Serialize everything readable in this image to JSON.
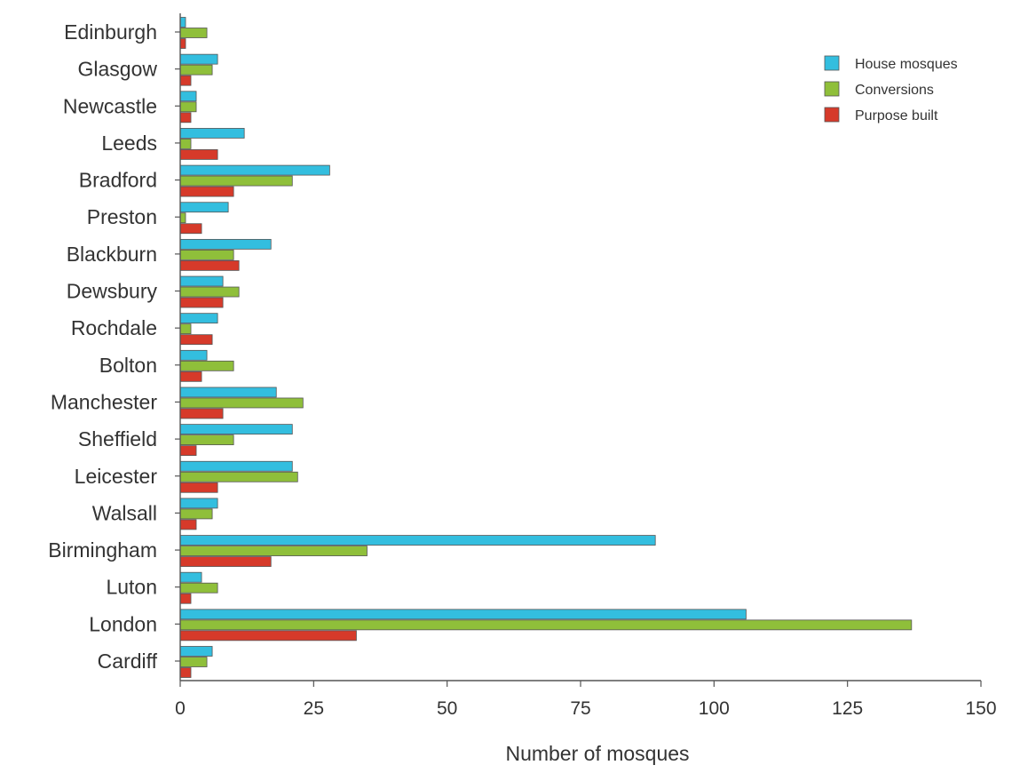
{
  "chart_data": {
    "type": "bar",
    "orientation": "horizontal",
    "title": "",
    "xlabel": "Number of mosques",
    "ylabel": "",
    "xlim": [
      0,
      150
    ],
    "x_ticks": [
      0,
      25,
      50,
      75,
      100,
      125,
      150
    ],
    "grid": false,
    "legend_position": "top-right",
    "categories": [
      "Edinburgh",
      "Glasgow",
      "Newcastle",
      "Leeds",
      "Bradford",
      "Preston",
      "Blackburn",
      "Dewsbury",
      "Rochdale",
      "Bolton",
      "Manchester",
      "Sheffield",
      "Leicester",
      "Walsall",
      "Birmingham",
      "Luton",
      "London",
      "Cardiff"
    ],
    "series": [
      {
        "name": "House mosques",
        "color": "#33bedf",
        "values": [
          1,
          7,
          3,
          12,
          28,
          9,
          17,
          8,
          7,
          5,
          18,
          21,
          21,
          7,
          89,
          4,
          106,
          6
        ]
      },
      {
        "name": "Conversions",
        "color": "#8fbf3a",
        "values": [
          5,
          6,
          3,
          2,
          21,
          1,
          10,
          11,
          2,
          10,
          23,
          10,
          22,
          6,
          35,
          7,
          137,
          5
        ]
      },
      {
        "name": "Purpose built",
        "color": "#d63a2a",
        "values": [
          1,
          2,
          2,
          7,
          10,
          4,
          11,
          8,
          6,
          4,
          8,
          3,
          7,
          3,
          17,
          2,
          33,
          2
        ]
      }
    ]
  }
}
